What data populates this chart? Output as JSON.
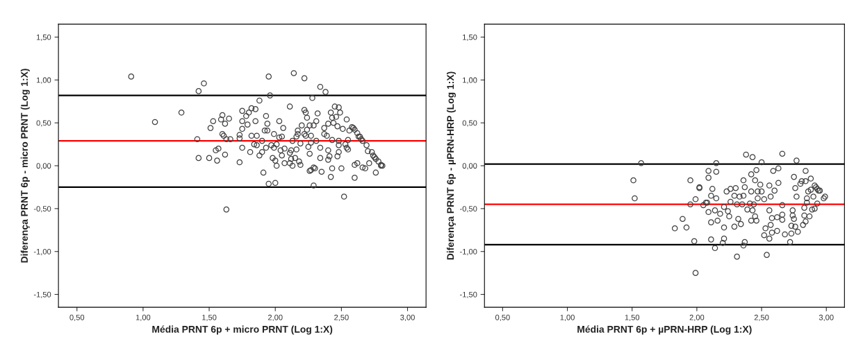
{
  "chart_data": [
    {
      "type": "scatter",
      "xlabel": "Média PRNT 6p + micro PRNT (Log 1:X)",
      "ylabel": "Diferença PRNT 6p - micro PRNT (Log 1:X)",
      "xlim": [
        0.36,
        3.14
      ],
      "ylim": [
        -1.65,
        1.65
      ],
      "xticks": [
        {
          "value": 0.5,
          "label": "0,50"
        },
        {
          "value": 1.0,
          "label": "1,00"
        },
        {
          "value": 1.5,
          "label": "1,50"
        },
        {
          "value": 2.0,
          "label": "2,00"
        },
        {
          "value": 2.5,
          "label": "2,50"
        },
        {
          "value": 3.0,
          "label": "3,00"
        }
      ],
      "yticks": [
        {
          "value": -1.5,
          "label": "-1,50"
        },
        {
          "value": -1.0,
          "label": "-1,00"
        },
        {
          "value": -0.5,
          "label": "-0,50"
        },
        {
          "value": 0.0,
          "label": "0,00"
        },
        {
          "value": 0.5,
          "label": "0,50"
        },
        {
          "value": 1.0,
          "label": "1,00"
        },
        {
          "value": 1.5,
          "label": "1,50"
        }
      ],
      "grid": false,
      "marker": "circle",
      "ref_lines": [
        {
          "axis": "y",
          "value": 0.82,
          "color": "#000000"
        },
        {
          "axis": "y",
          "value": 0.29,
          "color": "#ff0000"
        },
        {
          "axis": "y",
          "value": -0.25,
          "color": "#000000"
        }
      ],
      "series": [
        {
          "color": "#404040",
          "x": [
            0.91,
            1.09,
            1.29,
            1.42,
            1.46,
            1.41,
            1.42,
            1.51,
            1.53,
            1.5,
            1.56,
            1.55,
            1.57,
            1.59,
            1.6,
            1.62,
            1.65,
            1.6,
            1.61,
            1.63,
            1.66,
            1.62,
            1.63,
            1.73,
            1.73,
            1.73,
            1.75,
            1.75,
            1.75,
            1.75,
            1.78,
            1.79,
            1.8,
            1.82,
            1.85,
            1.81,
            1.82,
            1.85,
            1.84,
            1.86,
            1.86,
            1.88,
            1.88,
            1.9,
            1.9,
            1.91,
            1.93,
            1.94,
            1.92,
            1.94,
            1.93,
            1.95,
            1.96,
            1.95,
            1.97,
            1.99,
            1.99,
            1.98,
            2.0,
            2.0,
            2.01,
            2.01,
            2.03,
            2.03,
            2.05,
            2.04,
            2.05,
            2.06,
            2.07,
            2.07,
            2.11,
            2.11,
            2.12,
            2.11,
            2.12,
            2.13,
            2.13,
            2.14,
            2.15,
            2.16,
            2.16,
            2.17,
            2.18,
            2.19,
            2.17,
            2.19,
            2.2,
            2.22,
            2.22,
            2.23,
            2.22,
            2.23,
            2.24,
            2.24,
            2.25,
            2.26,
            2.26,
            2.26,
            2.27,
            2.28,
            2.27,
            2.27,
            2.29,
            2.29,
            2.29,
            2.3,
            2.31,
            2.31,
            2.32,
            2.34,
            2.34,
            2.34,
            2.35,
            2.38,
            2.37,
            2.37,
            2.39,
            2.4,
            2.4,
            2.4,
            2.41,
            2.42,
            2.42,
            2.43,
            2.43,
            2.43,
            2.45,
            2.44,
            2.46,
            2.47,
            2.47,
            2.48,
            2.48,
            2.48,
            2.48,
            2.49,
            2.5,
            2.51,
            2.52,
            2.53,
            2.54,
            2.54,
            2.55,
            2.55,
            2.56,
            2.58,
            2.59,
            2.6,
            2.6,
            2.6,
            2.62,
            2.62,
            2.63,
            2.64,
            2.65,
            2.66,
            2.66,
            2.68,
            2.69,
            2.7,
            2.71,
            2.73,
            2.74,
            2.75,
            2.76,
            2.76,
            2.78,
            2.8,
            2.8,
            2.81
          ],
          "values": [
            1.04,
            0.51,
            0.62,
            0.87,
            0.96,
            0.31,
            0.09,
            0.44,
            0.52,
            0.09,
            0.06,
            0.18,
            0.2,
            0.54,
            0.59,
            0.49,
            0.55,
            0.37,
            0.35,
            0.31,
            0.31,
            0.13,
            -0.51,
            0.36,
            0.32,
            0.04,
            0.64,
            0.52,
            0.43,
            0.21,
            0.58,
            0.48,
            0.62,
            0.67,
            0.66,
            0.16,
            0.35,
            0.52,
            0.25,
            0.35,
            0.24,
            0.76,
            0.12,
            0.16,
            0.29,
            -0.08,
            0.58,
            0.49,
            0.41,
            0.41,
            0.21,
            1.04,
            0.82,
            -0.21,
            0.24,
            0.21,
            0.37,
            0.09,
            0.06,
            -0.2,
            0.0,
            0.25,
            0.52,
            0.33,
            0.34,
            0.18,
            0.12,
            0.44,
            0.2,
            0.03,
            0.69,
            0.15,
            0.18,
            0.03,
            0.08,
            0.0,
            0.29,
            1.08,
            0.09,
            0.34,
            0.19,
            0.41,
            0.05,
            0.01,
            0.37,
            0.26,
            0.47,
            1.02,
            0.65,
            0.62,
            0.37,
            0.35,
            0.56,
            0.42,
            0.22,
            0.47,
            0.14,
            -0.06,
            -0.05,
            0.79,
            0.27,
            0.35,
            0.47,
            -0.23,
            -0.02,
            -0.03,
            0.29,
            0.52,
            0.61,
            0.09,
            0.21,
            0.92,
            -0.07,
            0.86,
            0.44,
            0.37,
            0.35,
            0.18,
            0.49,
            0.07,
            0.11,
            0.62,
            -0.13,
            -0.03,
            0.56,
            0.3,
            0.69,
            0.5,
            0.57,
            0.46,
            0.11,
            0.68,
            0.29,
            0.16,
            0.24,
            0.62,
            -0.03,
            0.43,
            -0.36,
            0.25,
            0.54,
            0.21,
            0.19,
            0.3,
            0.41,
            0.45,
            0.44,
            0.01,
            -0.14,
            0.42,
            0.03,
            0.38,
            0.34,
            0.34,
            0.31,
            0.29,
            -0.02,
            -0.03,
            0.24,
            0.17,
            0.03,
            0.16,
            0.12,
            0.1,
            0.08,
            -0.08,
            0.05,
            0.01,
            0.0,
            0.0
          ]
        }
      ]
    },
    {
      "type": "scatter",
      "xlabel": "Média PRNT 6p + µPRN-HRP (Log 1:X)",
      "ylabel": "Diferença PRNT 6p - µPRN-HRP (Log 1:X)",
      "xlim": [
        0.36,
        3.14
      ],
      "ylim": [
        -1.65,
        1.65
      ],
      "xticks": [
        {
          "value": 0.5,
          "label": "0,50"
        },
        {
          "value": 1.0,
          "label": "1,00"
        },
        {
          "value": 1.5,
          "label": "1,50"
        },
        {
          "value": 2.0,
          "label": "2,00"
        },
        {
          "value": 2.5,
          "label": "2,50"
        },
        {
          "value": 3.0,
          "label": "3,00"
        }
      ],
      "yticks": [
        {
          "value": -1.5,
          "label": "-1,50"
        },
        {
          "value": -1.0,
          "label": "-1,00"
        },
        {
          "value": -0.5,
          "label": "-0,50"
        },
        {
          "value": 0.0,
          "label": "0,00"
        },
        {
          "value": 0.5,
          "label": "0,50"
        },
        {
          "value": 1.0,
          "label": "1,00"
        },
        {
          "value": 1.5,
          "label": "1,50"
        }
      ],
      "grid": false,
      "marker": "circle",
      "ref_lines": [
        {
          "axis": "y",
          "value": 0.02,
          "color": "#000000"
        },
        {
          "axis": "y",
          "value": -0.45,
          "color": "#ff0000"
        },
        {
          "axis": "y",
          "value": -0.92,
          "color": "#000000"
        }
      ],
      "series": [
        {
          "color": "#404040",
          "x": [
            1.57,
            1.51,
            1.52,
            1.83,
            1.89,
            1.92,
            1.95,
            1.95,
            1.98,
            1.99,
            1.99,
            2.02,
            2.02,
            2.05,
            2.07,
            2.08,
            2.09,
            2.09,
            2.09,
            2.11,
            2.11,
            2.11,
            2.12,
            2.14,
            2.14,
            2.15,
            2.15,
            2.15,
            2.16,
            2.18,
            2.2,
            2.21,
            2.21,
            2.21,
            2.23,
            2.24,
            2.25,
            2.26,
            2.26,
            2.29,
            2.29,
            2.3,
            2.31,
            2.31,
            2.32,
            2.33,
            2.34,
            2.35,
            2.36,
            2.36,
            2.36,
            2.37,
            2.37,
            2.38,
            2.39,
            2.41,
            2.42,
            2.42,
            2.42,
            2.43,
            2.43,
            2.44,
            2.45,
            2.45,
            2.46,
            2.46,
            2.47,
            2.47,
            2.49,
            2.5,
            2.5,
            2.52,
            2.52,
            2.53,
            2.54,
            2.56,
            2.56,
            2.56,
            2.57,
            2.57,
            2.58,
            2.58,
            2.59,
            2.6,
            2.62,
            2.62,
            2.63,
            2.63,
            2.66,
            2.66,
            2.66,
            2.66,
            2.68,
            2.72,
            2.73,
            2.73,
            2.74,
            2.74,
            2.75,
            2.75,
            2.76,
            2.76,
            2.77,
            2.77,
            2.78,
            2.8,
            2.81,
            2.82,
            2.83,
            2.83,
            2.84,
            2.84,
            2.84,
            2.85,
            2.85,
            2.86,
            2.87,
            2.88,
            2.88,
            2.89,
            2.9,
            2.91,
            2.91,
            2.92,
            2.93,
            2.93,
            2.94,
            2.95,
            2.98,
            2.99
          ],
          "values": [
            0.03,
            -0.17,
            -0.38,
            -0.73,
            -0.62,
            -0.72,
            -0.17,
            -0.45,
            -0.88,
            -0.39,
            -1.25,
            -0.25,
            -0.26,
            -0.46,
            -0.43,
            -0.43,
            -0.14,
            -0.06,
            -0.54,
            -0.66,
            -0.35,
            -0.86,
            -0.27,
            -0.52,
            -0.96,
            0.03,
            -0.07,
            -0.38,
            -0.64,
            -0.56,
            -0.9,
            -0.72,
            -0.85,
            -0.48,
            -0.3,
            -0.53,
            -0.59,
            -0.27,
            -0.42,
            -0.35,
            -0.71,
            -0.26,
            -0.45,
            -1.06,
            -0.62,
            -0.36,
            -0.68,
            -0.45,
            -0.17,
            -0.35,
            -0.93,
            -0.25,
            -0.89,
            0.13,
            -0.51,
            -0.44,
            -0.3,
            -0.1,
            -0.64,
            0.1,
            -0.52,
            -0.45,
            -0.59,
            -0.17,
            -0.64,
            -0.05,
            -0.38,
            -0.3,
            -0.22,
            0.04,
            -0.3,
            -0.39,
            -0.81,
            -0.73,
            -1.04,
            -0.85,
            -0.23,
            -0.52,
            -0.69,
            -0.36,
            -0.78,
            -0.61,
            -0.06,
            -0.29,
            -0.76,
            -0.6,
            -0.03,
            -0.2,
            -0.46,
            0.14,
            -0.57,
            -0.63,
            -0.8,
            -0.89,
            -0.79,
            -0.7,
            -0.52,
            -0.58,
            -0.13,
            -0.62,
            -0.71,
            -0.26,
            0.06,
            -0.36,
            -0.77,
            -0.21,
            -0.18,
            -0.69,
            -0.49,
            -0.58,
            -0.06,
            -0.65,
            -0.18,
            -0.43,
            -0.38,
            -0.3,
            -0.59,
            -0.15,
            -0.28,
            -0.51,
            -0.36,
            -0.5,
            -0.23,
            -0.25,
            -0.27,
            -0.44,
            -0.29,
            -0.29,
            -0.38,
            -0.36
          ]
        }
      ]
    }
  ]
}
